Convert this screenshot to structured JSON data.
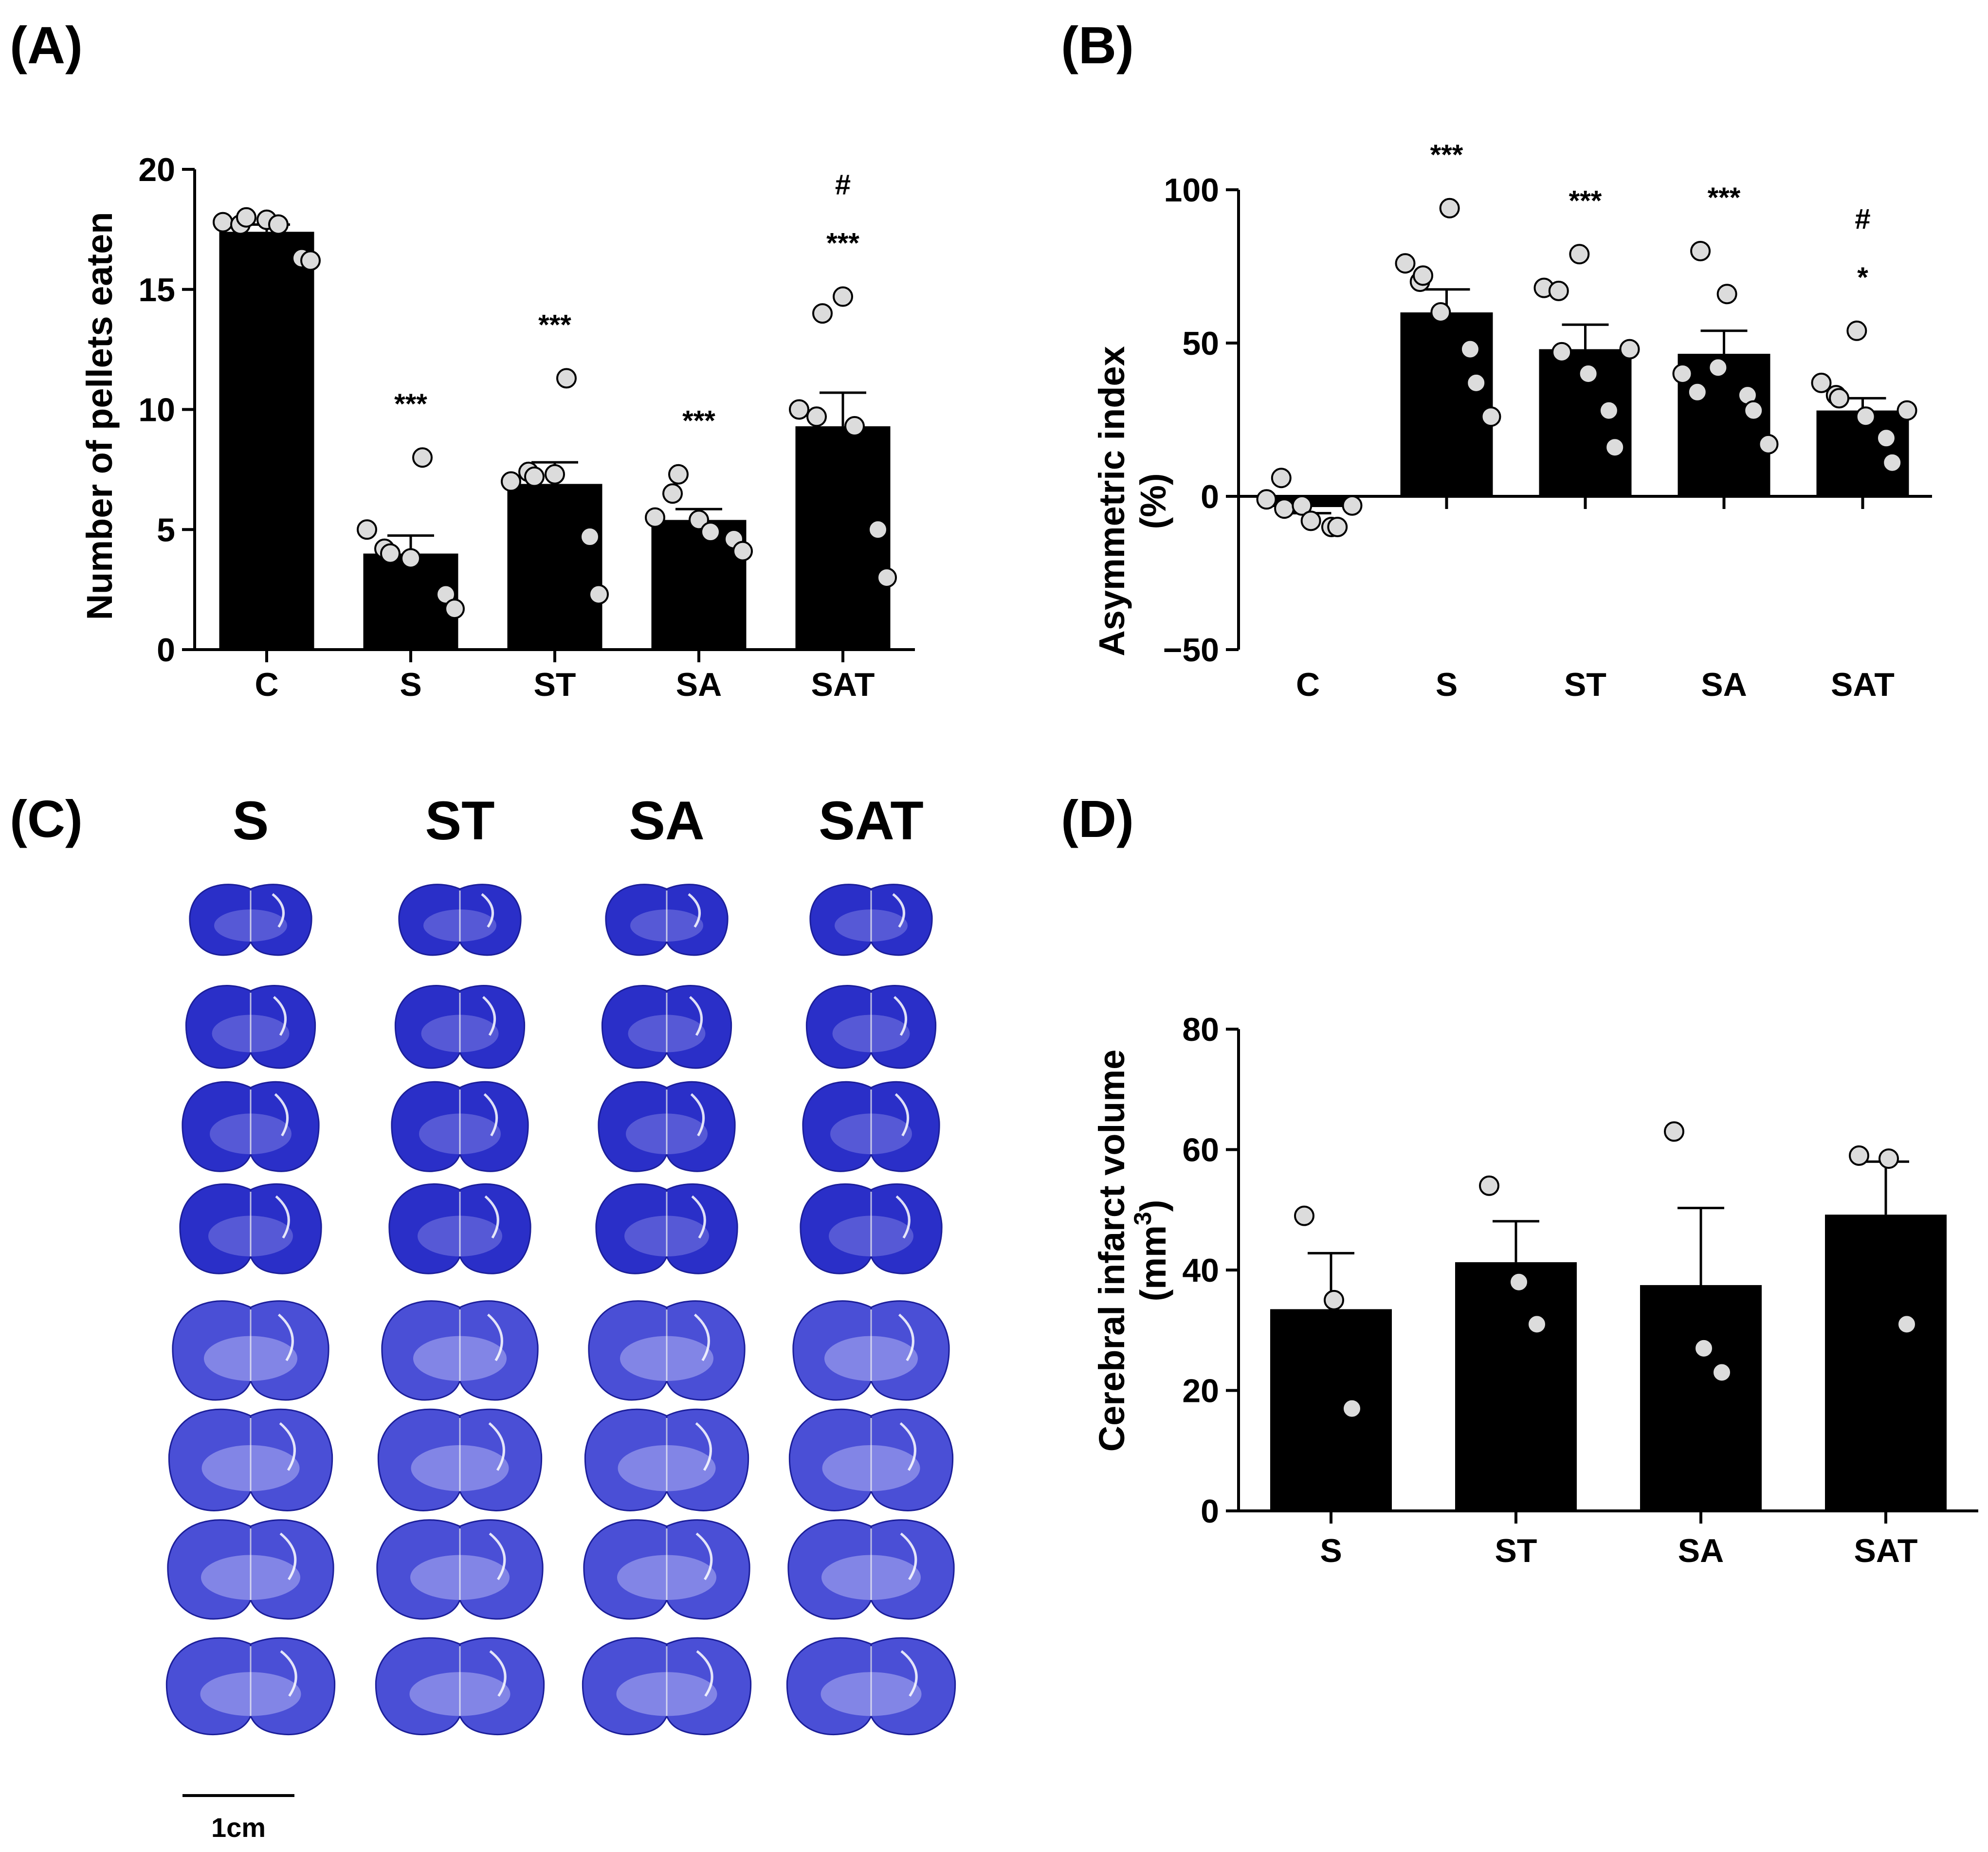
{
  "panels": {
    "A": "(A)",
    "B": "(B)",
    "C": "(C)",
    "D": "(D)"
  },
  "colors": {
    "bar": "#000000",
    "point_fill": "#dcdcdc",
    "point_stroke": "#000000",
    "stain_dark": "#2a2fc8",
    "stain_mid": "#4a4fd6",
    "stain_light": "#a8aaf0"
  },
  "chart_data": [
    {
      "id": "A",
      "type": "bar",
      "ylabel": "Number of pellets eaten",
      "categories": [
        "C",
        "S",
        "ST",
        "SA",
        "SAT"
      ],
      "values": [
        17.4,
        4.0,
        6.9,
        5.4,
        9.3
      ],
      "sem": [
        0.3,
        0.75,
        0.9,
        0.45,
        1.4
      ],
      "points": [
        [
          17.8,
          17.7,
          18.0,
          17.9,
          17.7,
          16.3,
          16.2
        ],
        [
          5.0,
          4.2,
          4.0,
          3.8,
          8.0,
          2.3,
          1.7
        ],
        [
          7.0,
          7.4,
          7.2,
          7.3,
          11.3,
          4.7,
          2.3
        ],
        [
          5.5,
          6.5,
          7.3,
          5.4,
          4.9,
          4.6,
          4.1
        ],
        [
          10.0,
          9.7,
          14.0,
          14.7,
          9.3,
          5.0,
          3.0
        ]
      ],
      "ylim": [
        0,
        20
      ],
      "yticks": [
        0,
        5,
        10,
        15,
        20
      ],
      "significance": [
        [],
        [
          "***"
        ],
        [
          "***"
        ],
        [
          "***"
        ],
        [
          "***",
          "#"
        ]
      ]
    },
    {
      "id": "B",
      "type": "bar",
      "ylabel": "Asymmetric index",
      "ylabel2": "(%)",
      "categories": [
        "C",
        "S",
        "ST",
        "SA",
        "SAT"
      ],
      "values": [
        -3.5,
        60,
        48,
        46.5,
        28
      ],
      "sem": [
        2.0,
        7.5,
        8.0,
        7.5,
        4.0
      ],
      "points": [
        [
          -1,
          6,
          -4,
          -3,
          -8,
          -10,
          -10,
          -3
        ],
        [
          76,
          70,
          72,
          60,
          94,
          48,
          37,
          26
        ],
        [
          68,
          67,
          47,
          79,
          40,
          28,
          16,
          48
        ],
        [
          40,
          34,
          80,
          42,
          66,
          33,
          28,
          17
        ],
        [
          37,
          33,
          32,
          54,
          26,
          19,
          11,
          28
        ]
      ],
      "ylim": [
        -50,
        100
      ],
      "yticks": [
        -50,
        0,
        50,
        100
      ],
      "significance": [
        [],
        [
          "***"
        ],
        [
          "***"
        ],
        [
          "***"
        ],
        [
          "*",
          "#"
        ]
      ]
    },
    {
      "id": "D",
      "type": "bar",
      "ylabel": "Cerebral infarct volume",
      "ylabel2_main": "(mm",
      "ylabel2_sup": "3",
      "ylabel2_end": ")",
      "categories": [
        "S",
        "ST",
        "SA",
        "SAT"
      ],
      "values": [
        33.5,
        41.3,
        37.5,
        49.2
      ],
      "sem": [
        9.3,
        6.8,
        12.8,
        8.8
      ],
      "points": [
        [
          49,
          35,
          17
        ],
        [
          54,
          38,
          31
        ],
        [
          63,
          27,
          23
        ],
        [
          59,
          58.5,
          31
        ]
      ],
      "ylim": [
        0,
        80
      ],
      "yticks": [
        0,
        20,
        40,
        60,
        80
      ]
    }
  ],
  "slices": {
    "headers": [
      "S",
      "ST",
      "SA",
      "SAT"
    ],
    "rows": 8,
    "scale_bar": "1cm"
  }
}
